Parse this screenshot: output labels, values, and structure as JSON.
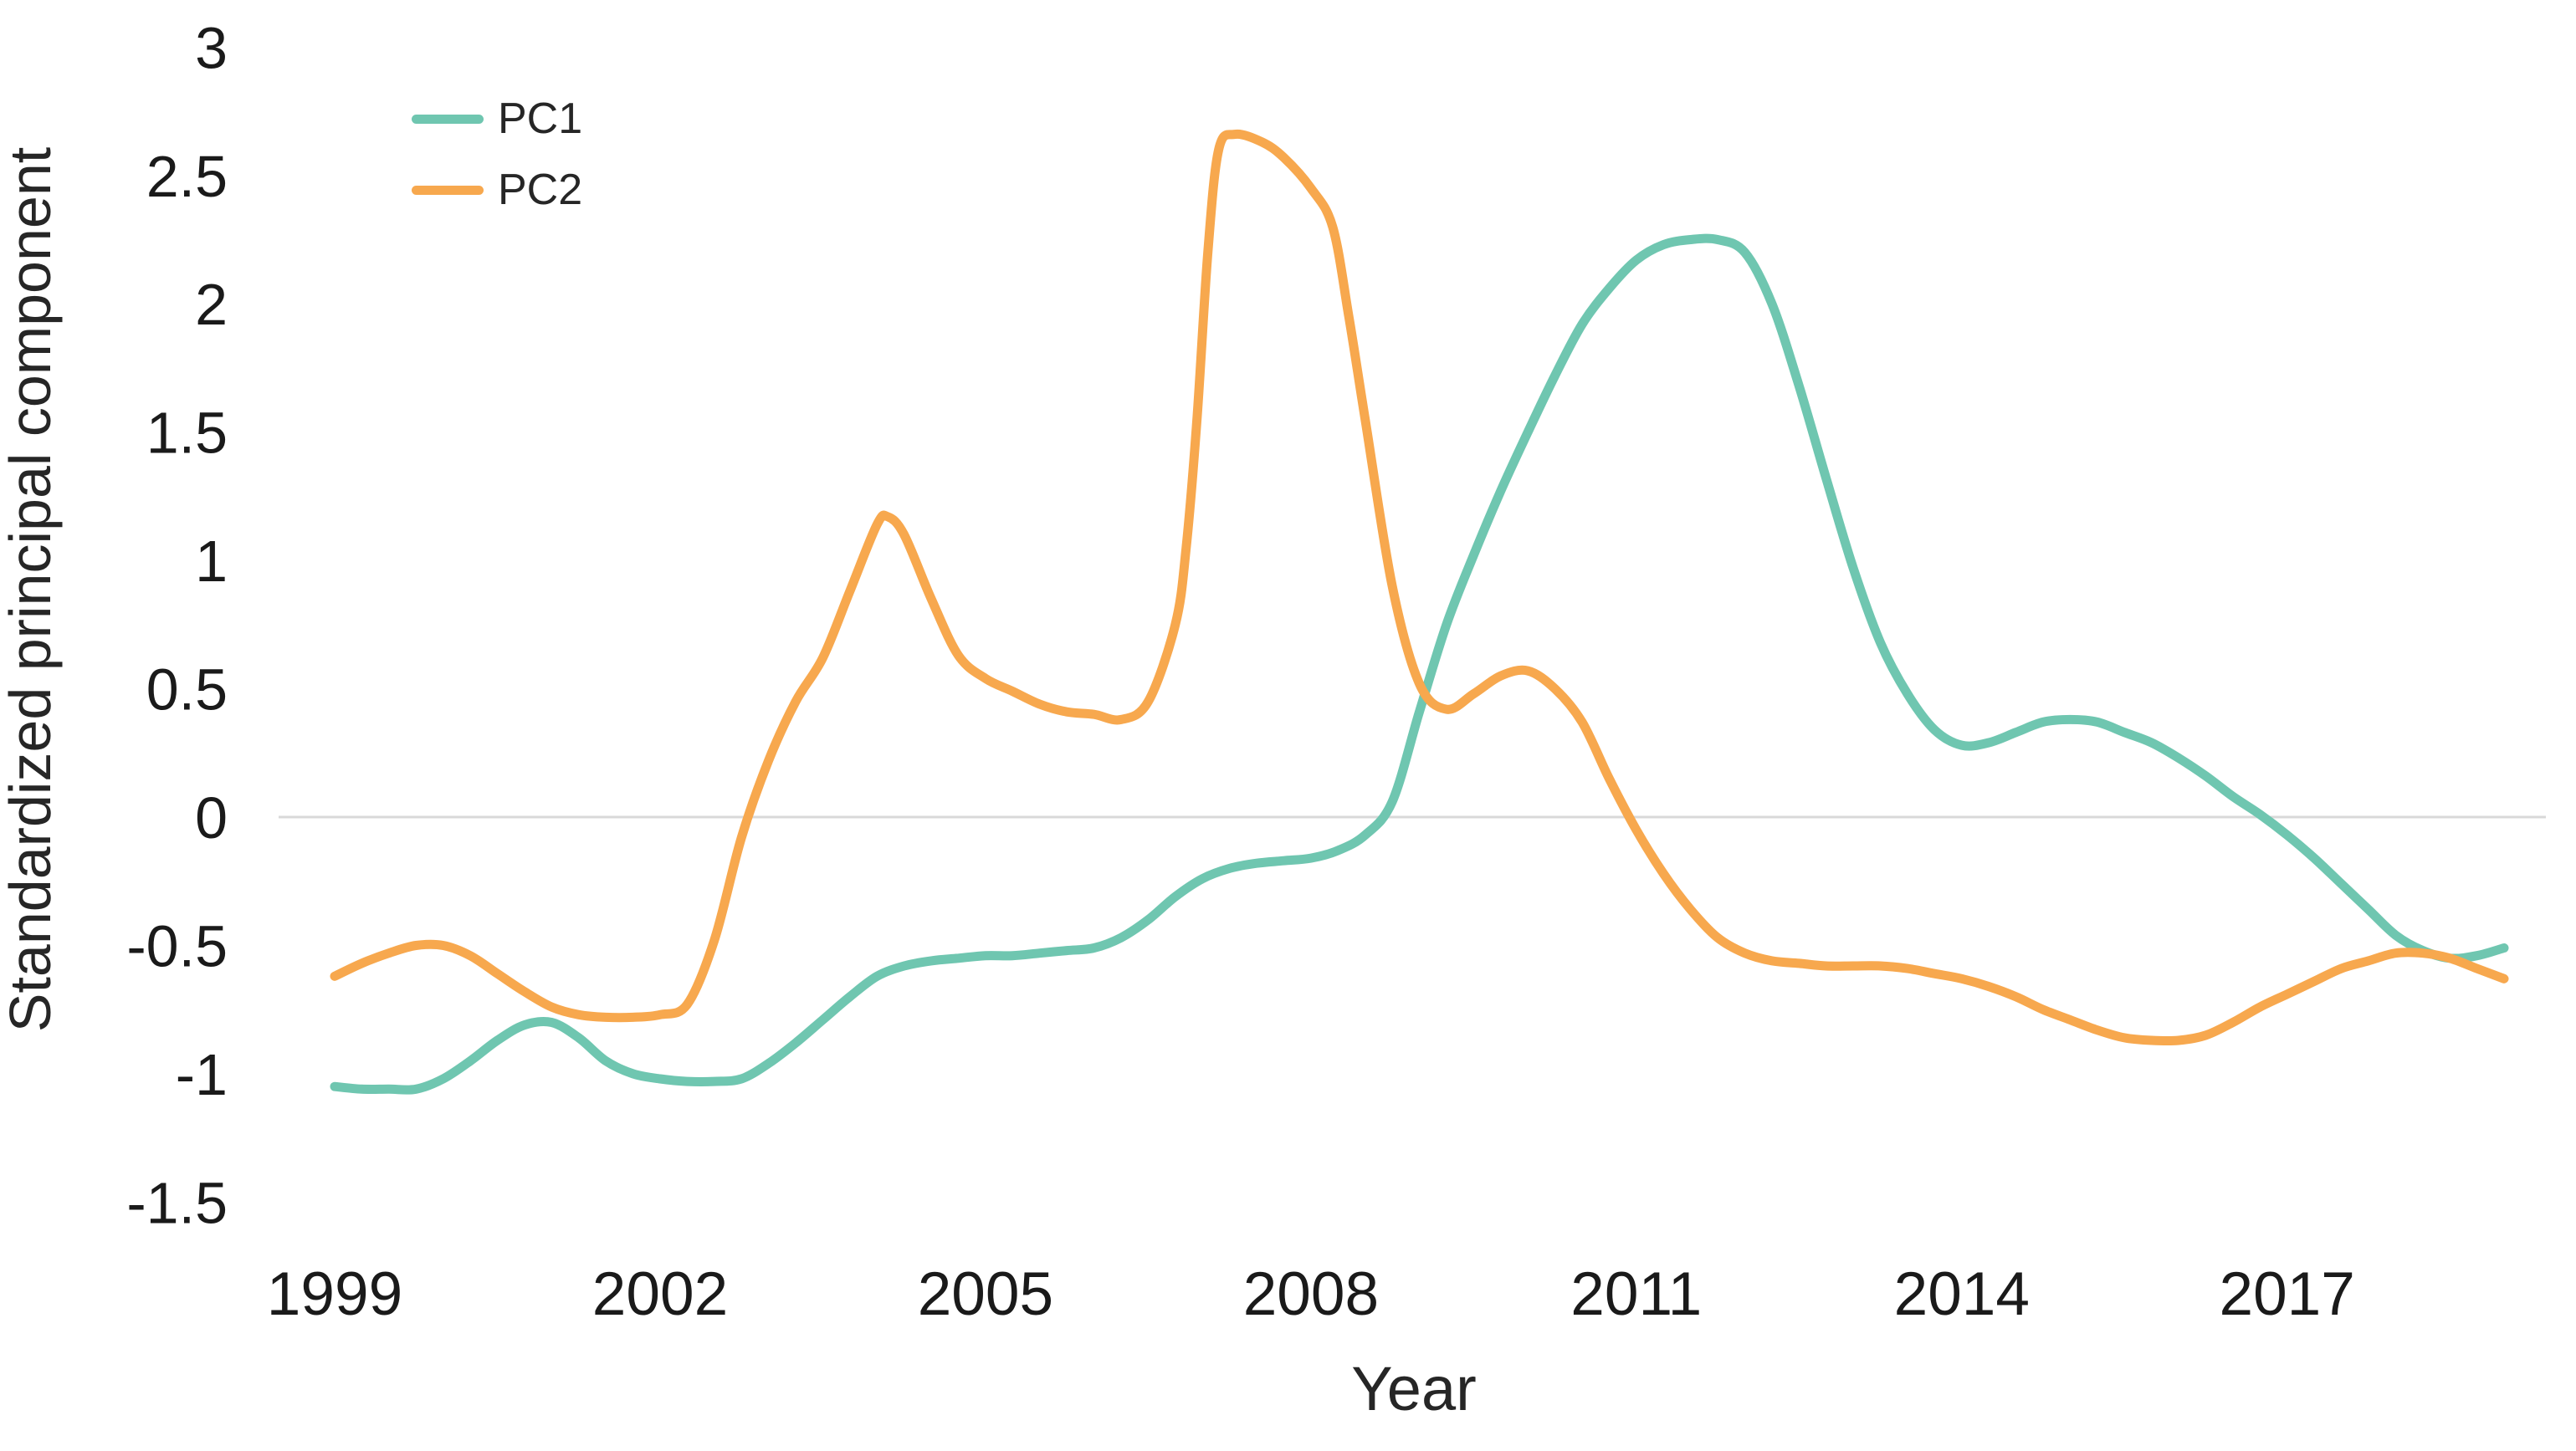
{
  "figure": {
    "background_color": "#ffffff"
  },
  "chart_data": {
    "type": "line",
    "title": "",
    "xlabel": "Year",
    "ylabel": "Standardized principal component",
    "xlim": [
      1998.9,
      2019.4
    ],
    "ylim": [
      -1.5,
      3
    ],
    "grid": "horizontal zero line only",
    "grid_color": "#d9d9d9",
    "tick_text_color": "#1a1a1a",
    "axis_title_color": "#262626",
    "legend_position": "top-left inside plot",
    "x_ticks": [
      {
        "label": "1999",
        "year": 1999
      },
      {
        "label": "2002",
        "year": 2002
      },
      {
        "label": "2005",
        "year": 2005
      },
      {
        "label": "2008",
        "year": 2008
      },
      {
        "label": "2011",
        "year": 2011
      },
      {
        "label": "2014",
        "year": 2014
      },
      {
        "label": "2017",
        "year": 2017
      }
    ],
    "y_ticks": [
      {
        "label": "3",
        "value": 3
      },
      {
        "label": "2.5",
        "value": 2.5
      },
      {
        "label": "2",
        "value": 2
      },
      {
        "label": "1.5",
        "value": 1.5
      },
      {
        "label": "1",
        "value": 1
      },
      {
        "label": "0.5",
        "value": 0.5
      },
      {
        "label": "0",
        "value": 0
      },
      {
        "label": "-0.5",
        "value": -0.5
      },
      {
        "label": "-1",
        "value": -1
      },
      {
        "label": "-1.5",
        "value": -1.5
      }
    ],
    "series": [
      {
        "name": "PC1",
        "color": "#6fc6b0",
        "points": [
          [
            1999.0,
            -1.05
          ],
          [
            1999.25,
            -1.06
          ],
          [
            1999.5,
            -1.06
          ],
          [
            1999.75,
            -1.06
          ],
          [
            2000.0,
            -1.02
          ],
          [
            2000.25,
            -0.95
          ],
          [
            2000.5,
            -0.87
          ],
          [
            2000.75,
            -0.81
          ],
          [
            2001.0,
            -0.8
          ],
          [
            2001.25,
            -0.86
          ],
          [
            2001.5,
            -0.95
          ],
          [
            2001.75,
            -1.0
          ],
          [
            2002.0,
            -1.02
          ],
          [
            2002.25,
            -1.03
          ],
          [
            2002.5,
            -1.03
          ],
          [
            2002.75,
            -1.02
          ],
          [
            2003.0,
            -0.96
          ],
          [
            2003.25,
            -0.88
          ],
          [
            2003.5,
            -0.79
          ],
          [
            2003.75,
            -0.7
          ],
          [
            2004.0,
            -0.62
          ],
          [
            2004.25,
            -0.58
          ],
          [
            2004.5,
            -0.56
          ],
          [
            2004.75,
            -0.55
          ],
          [
            2005.0,
            -0.54
          ],
          [
            2005.25,
            -0.54
          ],
          [
            2005.5,
            -0.53
          ],
          [
            2005.75,
            -0.52
          ],
          [
            2006.0,
            -0.51
          ],
          [
            2006.25,
            -0.47
          ],
          [
            2006.5,
            -0.4
          ],
          [
            2006.75,
            -0.31
          ],
          [
            2007.0,
            -0.24
          ],
          [
            2007.25,
            -0.2
          ],
          [
            2007.5,
            -0.18
          ],
          [
            2007.75,
            -0.17
          ],
          [
            2008.0,
            -0.16
          ],
          [
            2008.25,
            -0.13
          ],
          [
            2008.5,
            -0.07
          ],
          [
            2008.75,
            0.06
          ],
          [
            2009.0,
            0.41
          ],
          [
            2009.25,
            0.75
          ],
          [
            2009.5,
            1.02
          ],
          [
            2009.75,
            1.27
          ],
          [
            2010.0,
            1.5
          ],
          [
            2010.25,
            1.72
          ],
          [
            2010.5,
            1.92
          ],
          [
            2010.75,
            2.06
          ],
          [
            2011.0,
            2.17
          ],
          [
            2011.25,
            2.23
          ],
          [
            2011.5,
            2.25
          ],
          [
            2011.75,
            2.25
          ],
          [
            2012.0,
            2.2
          ],
          [
            2012.25,
            2.0
          ],
          [
            2012.5,
            1.68
          ],
          [
            2012.75,
            1.32
          ],
          [
            2013.0,
            0.97
          ],
          [
            2013.25,
            0.68
          ],
          [
            2013.5,
            0.48
          ],
          [
            2013.75,
            0.34
          ],
          [
            2014.0,
            0.28
          ],
          [
            2014.25,
            0.29
          ],
          [
            2014.5,
            0.33
          ],
          [
            2014.75,
            0.37
          ],
          [
            2015.0,
            0.38
          ],
          [
            2015.25,
            0.37
          ],
          [
            2015.5,
            0.33
          ],
          [
            2015.75,
            0.29
          ],
          [
            2016.0,
            0.23
          ],
          [
            2016.25,
            0.16
          ],
          [
            2016.5,
            0.08
          ],
          [
            2016.75,
            0.01
          ],
          [
            2017.0,
            -0.07
          ],
          [
            2017.25,
            -0.16
          ],
          [
            2017.5,
            -0.26
          ],
          [
            2017.75,
            -0.36
          ],
          [
            2018.0,
            -0.46
          ],
          [
            2018.25,
            -0.52
          ],
          [
            2018.5,
            -0.55
          ],
          [
            2018.75,
            -0.54
          ],
          [
            2019.0,
            -0.51
          ]
        ]
      },
      {
        "name": "PC2",
        "color": "#f7a84e",
        "points": [
          [
            1999.0,
            -0.62
          ],
          [
            1999.25,
            -0.57
          ],
          [
            1999.5,
            -0.53
          ],
          [
            1999.75,
            -0.5
          ],
          [
            2000.0,
            -0.5
          ],
          [
            2000.25,
            -0.54
          ],
          [
            2000.5,
            -0.61
          ],
          [
            2000.75,
            -0.68
          ],
          [
            2001.0,
            -0.74
          ],
          [
            2001.25,
            -0.77
          ],
          [
            2001.5,
            -0.78
          ],
          [
            2001.75,
            -0.78
          ],
          [
            2002.0,
            -0.77
          ],
          [
            2002.25,
            -0.73
          ],
          [
            2002.5,
            -0.48
          ],
          [
            2002.75,
            -0.08
          ],
          [
            2003.0,
            0.22
          ],
          [
            2003.25,
            0.45
          ],
          [
            2003.5,
            0.62
          ],
          [
            2003.75,
            0.88
          ],
          [
            2004.0,
            1.14
          ],
          [
            2004.1,
            1.17
          ],
          [
            2004.25,
            1.1
          ],
          [
            2004.5,
            0.85
          ],
          [
            2004.75,
            0.63
          ],
          [
            2005.0,
            0.54
          ],
          [
            2005.25,
            0.49
          ],
          [
            2005.5,
            0.44
          ],
          [
            2005.75,
            0.41
          ],
          [
            2006.0,
            0.4
          ],
          [
            2006.25,
            0.38
          ],
          [
            2006.5,
            0.45
          ],
          [
            2006.75,
            0.75
          ],
          [
            2006.85,
            1.05
          ],
          [
            2006.95,
            1.55
          ],
          [
            2007.05,
            2.2
          ],
          [
            2007.15,
            2.6
          ],
          [
            2007.3,
            2.66
          ],
          [
            2007.55,
            2.63
          ],
          [
            2007.75,
            2.57
          ],
          [
            2008.0,
            2.45
          ],
          [
            2008.2,
            2.3
          ],
          [
            2008.35,
            1.95
          ],
          [
            2008.5,
            1.55
          ],
          [
            2008.75,
            0.9
          ],
          [
            2009.0,
            0.52
          ],
          [
            2009.25,
            0.42
          ],
          [
            2009.5,
            0.48
          ],
          [
            2009.75,
            0.55
          ],
          [
            2010.0,
            0.57
          ],
          [
            2010.25,
            0.5
          ],
          [
            2010.5,
            0.37
          ],
          [
            2010.75,
            0.15
          ],
          [
            2011.0,
            -0.05
          ],
          [
            2011.25,
            -0.22
          ],
          [
            2011.5,
            -0.36
          ],
          [
            2011.75,
            -0.47
          ],
          [
            2012.0,
            -0.53
          ],
          [
            2012.25,
            -0.56
          ],
          [
            2012.5,
            -0.57
          ],
          [
            2012.75,
            -0.58
          ],
          [
            2013.0,
            -0.58
          ],
          [
            2013.25,
            -0.58
          ],
          [
            2013.5,
            -0.59
          ],
          [
            2013.75,
            -0.61
          ],
          [
            2014.0,
            -0.63
          ],
          [
            2014.25,
            -0.66
          ],
          [
            2014.5,
            -0.7
          ],
          [
            2014.75,
            -0.75
          ],
          [
            2015.0,
            -0.79
          ],
          [
            2015.25,
            -0.83
          ],
          [
            2015.5,
            -0.86
          ],
          [
            2015.75,
            -0.87
          ],
          [
            2016.0,
            -0.87
          ],
          [
            2016.25,
            -0.85
          ],
          [
            2016.5,
            -0.8
          ],
          [
            2016.75,
            -0.74
          ],
          [
            2017.0,
            -0.69
          ],
          [
            2017.25,
            -0.64
          ],
          [
            2017.5,
            -0.59
          ],
          [
            2017.75,
            -0.56
          ],
          [
            2018.0,
            -0.53
          ],
          [
            2018.25,
            -0.53
          ],
          [
            2018.5,
            -0.55
          ],
          [
            2018.75,
            -0.59
          ],
          [
            2019.0,
            -0.63
          ]
        ]
      }
    ]
  }
}
